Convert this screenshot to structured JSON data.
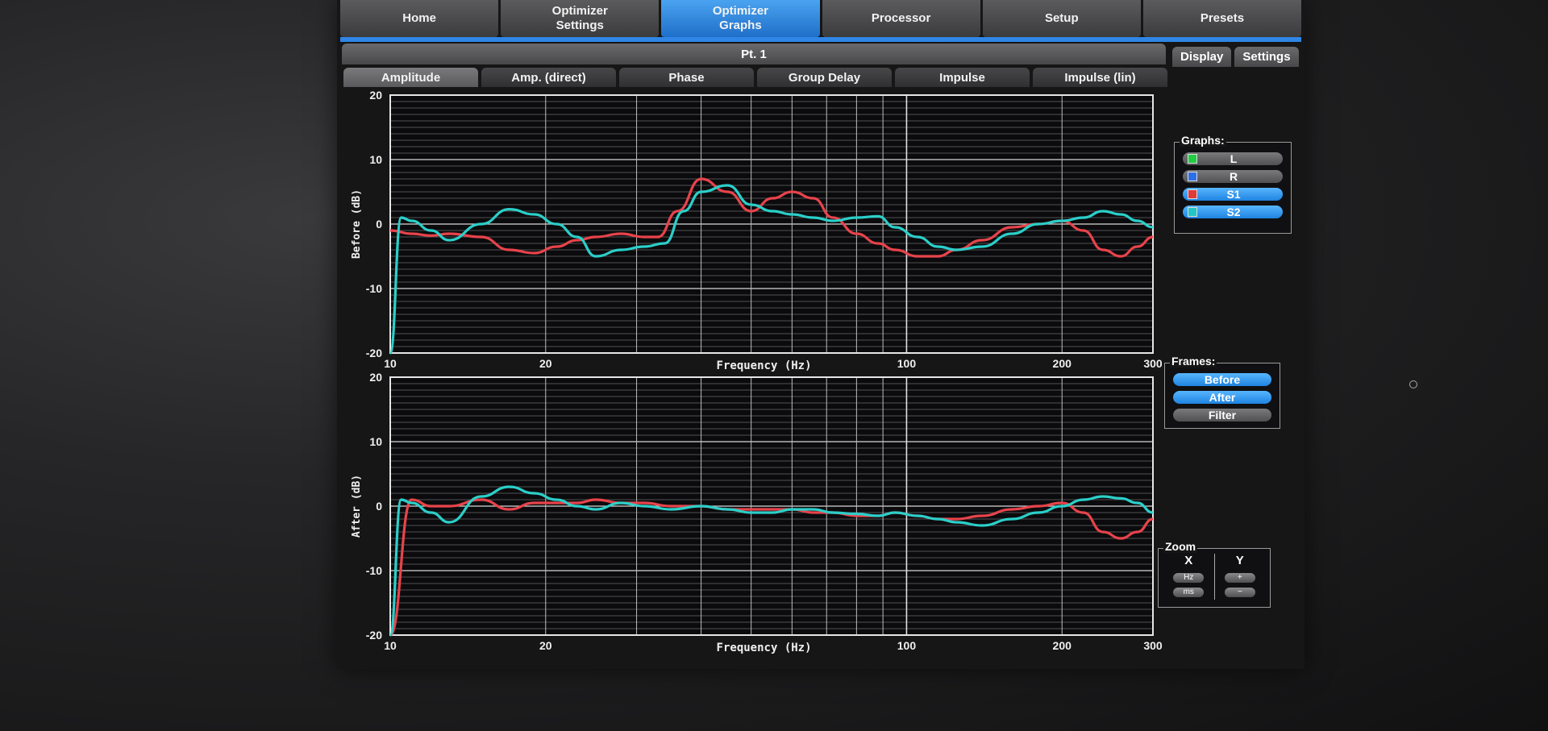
{
  "menu": {
    "tabs": [
      {
        "label": "Home",
        "active": false
      },
      {
        "label": "Optimizer\nSettings",
        "active": false
      },
      {
        "label": "Optimizer\nGraphs",
        "active": true
      },
      {
        "label": "Processor",
        "active": false
      },
      {
        "label": "Setup",
        "active": false
      },
      {
        "label": "Presets",
        "active": false
      }
    ]
  },
  "position_bar": {
    "label": "Pt. 1"
  },
  "side_buttons": {
    "display": "Display",
    "settings": "Settings"
  },
  "subtabs": [
    {
      "label": "Amplitude",
      "active": true
    },
    {
      "label": "Amp. (direct)",
      "active": false
    },
    {
      "label": "Phase",
      "active": false
    },
    {
      "label": "Group Delay",
      "active": false
    },
    {
      "label": "Impulse",
      "active": false
    },
    {
      "label": "Impulse (lin)",
      "active": false
    }
  ],
  "graphs_panel": {
    "title": "Graphs:",
    "items": [
      {
        "label": "L",
        "state": "off",
        "color": "#22cc44"
      },
      {
        "label": "R",
        "state": "off",
        "color": "#2f6fe6"
      },
      {
        "label": "S1",
        "state": "on",
        "color": "#e03a3a"
      },
      {
        "label": "S2",
        "state": "on",
        "color": "#22c6c6"
      }
    ]
  },
  "frames_panel": {
    "title": "Frames:",
    "items": [
      {
        "label": "Before",
        "state": "on"
      },
      {
        "label": "After",
        "state": "on"
      },
      {
        "label": "Filter",
        "state": "off"
      }
    ]
  },
  "zoom_panel": {
    "title": "Zoom",
    "x_label": "X",
    "y_label": "Y",
    "x_buttons": [
      "Hz",
      "ms"
    ],
    "y_buttons": [
      "+",
      "−"
    ]
  },
  "chart_data": [
    {
      "type": "line",
      "ylabel": "Before (dB)",
      "xlabel": "Frequency (Hz)",
      "xscale": "log",
      "xlim": [
        10,
        300
      ],
      "ylim": [
        -20,
        20
      ],
      "xticks": [
        10,
        20,
        100,
        200,
        300
      ],
      "xtick_labels": [
        "10",
        "20",
        "100",
        "200",
        "300"
      ],
      "yticks": [
        20,
        10,
        0,
        -10,
        -20
      ],
      "ytick_labels": [
        "20",
        "10",
        "0",
        "-10",
        "-20"
      ],
      "grid": true,
      "series": [
        {
          "name": "S1",
          "color": "#e8434b",
          "x": [
            10,
            11,
            12,
            13,
            15,
            17,
            19,
            21,
            23,
            25,
            28,
            31,
            33,
            36,
            40,
            45,
            50,
            55,
            60,
            66,
            72,
            80,
            88,
            95,
            105,
            115,
            125,
            140,
            160,
            180,
            200,
            220,
            240,
            260,
            280,
            300
          ],
          "y": [
            -1,
            -1.5,
            -1.8,
            -1.5,
            -2,
            -4,
            -4.5,
            -3.5,
            -2.5,
            -2,
            -1.5,
            -2,
            -2,
            2,
            7,
            5,
            2,
            4,
            5,
            4,
            1,
            -1.5,
            -3,
            -4,
            -5,
            -5,
            -4,
            -2.5,
            -0.5,
            0,
            0.5,
            -1,
            -4,
            -5,
            -3.5,
            -2
          ]
        },
        {
          "name": "S2",
          "color": "#2bcfc9",
          "x": [
            10,
            10.5,
            11,
            12,
            13,
            15,
            17,
            19,
            21,
            23,
            25,
            28,
            31,
            34,
            37,
            40,
            45,
            50,
            55,
            60,
            66,
            72,
            80,
            88,
            95,
            105,
            115,
            125,
            140,
            160,
            180,
            200,
            220,
            240,
            260,
            280,
            300
          ],
          "y": [
            -20,
            1,
            0.5,
            -1,
            -2.5,
            0,
            2.3,
            1.5,
            0,
            -2,
            -5,
            -4,
            -3.5,
            -3,
            2,
            5,
            6,
            3,
            2,
            1.5,
            1,
            0.5,
            1,
            1.2,
            -0.5,
            -2,
            -3.5,
            -4,
            -3.5,
            -1.5,
            0,
            0.5,
            1,
            2,
            1.5,
            0.5,
            -0.5
          ]
        }
      ]
    },
    {
      "type": "line",
      "ylabel": "After (dB)",
      "xlabel": "Frequency (Hz)",
      "xscale": "log",
      "xlim": [
        10,
        300
      ],
      "ylim": [
        -20,
        20
      ],
      "xticks": [
        10,
        20,
        100,
        200,
        300
      ],
      "xtick_labels": [
        "10",
        "20",
        "100",
        "200",
        "300"
      ],
      "yticks": [
        20,
        10,
        0,
        -10,
        -20
      ],
      "ytick_labels": [
        "20",
        "10",
        "0",
        "-10",
        "-20"
      ],
      "grid": true,
      "series": [
        {
          "name": "S1",
          "color": "#e8434b",
          "x": [
            10,
            11,
            12,
            13,
            15,
            17,
            19,
            21,
            23,
            25,
            28,
            31,
            35,
            40,
            45,
            50,
            55,
            60,
            66,
            72,
            80,
            88,
            95,
            105,
            115,
            125,
            140,
            160,
            180,
            200,
            220,
            240,
            260,
            280,
            300
          ],
          "y": [
            -20,
            1,
            0,
            0,
            1,
            -0.5,
            0.5,
            0.5,
            0.5,
            1,
            0.5,
            0.5,
            0,
            0,
            -0.5,
            -0.5,
            -0.5,
            -0.5,
            -1,
            -1,
            -1.5,
            -1.5,
            -1,
            -1.5,
            -2,
            -2,
            -1.5,
            -0.5,
            0,
            0.5,
            -1,
            -4,
            -5,
            -4,
            -2
          ]
        },
        {
          "name": "S2",
          "color": "#2bcfc9",
          "x": [
            10,
            10.5,
            11,
            12,
            13,
            15,
            17,
            19,
            21,
            23,
            25,
            28,
            31,
            35,
            40,
            45,
            50,
            55,
            60,
            66,
            72,
            80,
            88,
            95,
            105,
            115,
            125,
            140,
            160,
            180,
            200,
            220,
            240,
            260,
            280,
            300
          ],
          "y": [
            -20,
            1,
            0.5,
            -1,
            -2.5,
            1.5,
            3,
            2,
            1,
            0,
            -0.5,
            0.5,
            0,
            -0.5,
            0,
            -0.5,
            -1,
            -1,
            -0.5,
            -0.5,
            -1,
            -1.2,
            -1.5,
            -1,
            -1.5,
            -2,
            -2.5,
            -3,
            -2,
            -1,
            0,
            1,
            1.5,
            1.2,
            0.5,
            -1
          ]
        }
      ]
    }
  ]
}
